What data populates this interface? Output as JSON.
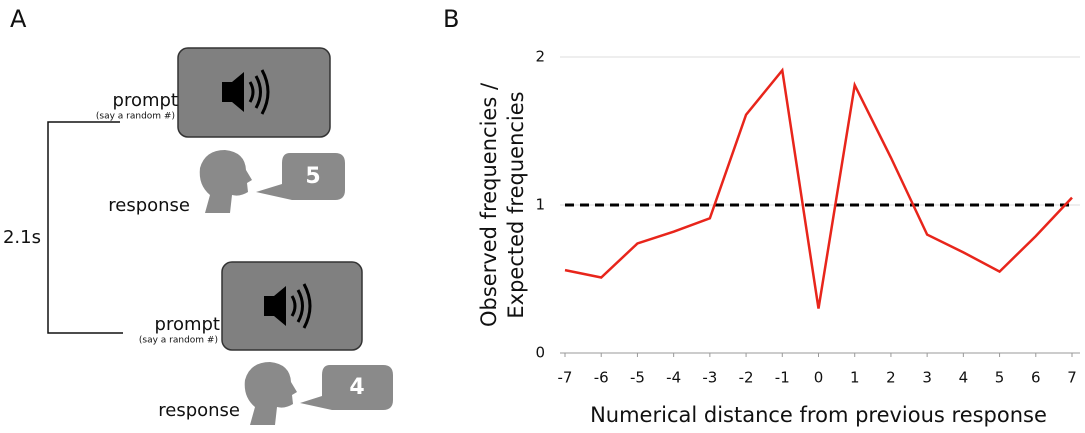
{
  "panel_labels": [
    "A",
    "B"
  ],
  "diagram": {
    "interval": "2.1s",
    "trials": [
      {
        "prompt": "prompt",
        "prompt_note": "(say a random #)",
        "response": "response",
        "number": "5"
      },
      {
        "prompt": "prompt",
        "prompt_note": "(say a random #)",
        "response": "response",
        "number": "4"
      }
    ]
  },
  "chart_data": {
    "type": "line",
    "xlabel": "Numerical distance from previous response",
    "ylabel": [
      "Observed frequencies /",
      "Expected frequencies"
    ],
    "x": [
      -7,
      -6,
      -5,
      -4,
      -3,
      -2,
      -1,
      0,
      1,
      2,
      3,
      4,
      5,
      6,
      7
    ],
    "values": [
      0.56,
      0.51,
      0.74,
      0.82,
      0.91,
      1.61,
      1.91,
      0.3,
      1.81,
      1.32,
      0.8,
      0.68,
      0.55,
      0.79,
      1.05
    ],
    "color": "#e8251b",
    "xlim": [
      -7,
      7
    ],
    "xticks": [
      -7,
      -6,
      -5,
      -4,
      -3,
      -2,
      -1,
      0,
      1,
      2,
      3,
      4,
      5,
      6,
      7
    ],
    "ylim": [
      0,
      2
    ],
    "yticks": [
      0,
      1,
      2
    ],
    "reference_line": 1,
    "grid": true
  }
}
